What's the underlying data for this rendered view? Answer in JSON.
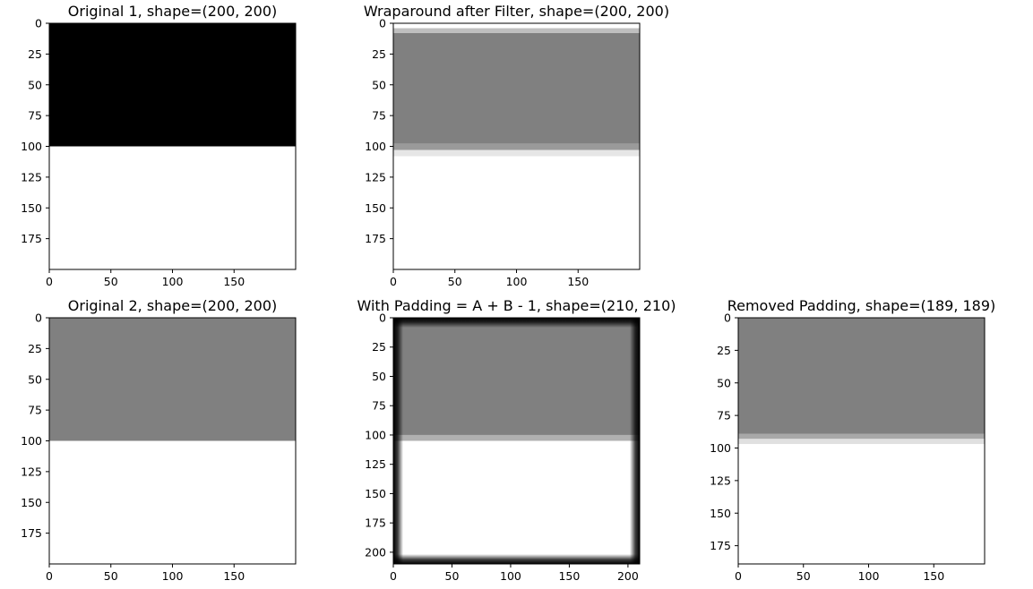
{
  "chart_data": [
    {
      "type": "image",
      "title": "Original 1, shape=(200, 200)",
      "shape": [
        200,
        200
      ],
      "xlim": [
        0,
        200
      ],
      "ylim": [
        0,
        200
      ],
      "xticks": [
        0,
        50,
        100,
        150
      ],
      "yticks": [
        0,
        25,
        50,
        75,
        100,
        125,
        150,
        175
      ],
      "colormap": "gray",
      "content": "rows 0-100 black, rows 100-200 white",
      "bands": [
        {
          "from": 0,
          "to": 100,
          "color": "#000000"
        },
        {
          "from": 100,
          "to": 200,
          "color": "#ffffff"
        }
      ],
      "edge_blur": false
    },
    {
      "type": "image",
      "title": "Wraparound after Filter, shape=(200, 200)",
      "shape": [
        200,
        200
      ],
      "xlim": [
        0,
        200
      ],
      "ylim": [
        0,
        200
      ],
      "xticks": [
        0,
        50,
        100,
        150
      ],
      "yticks": [
        0,
        25,
        50,
        75,
        100,
        125,
        150,
        175
      ],
      "colormap": "gray",
      "content": "gray band rows ~5-100 with blurred edges, white elsewhere",
      "bands": [
        {
          "from": 0,
          "to": 4,
          "color": "#ffffff"
        },
        {
          "from": 4,
          "to": 8,
          "color": "#bfbfbf"
        },
        {
          "from": 8,
          "to": 98,
          "color": "#808080"
        },
        {
          "from": 98,
          "to": 103,
          "color": "#9a9a9a"
        },
        {
          "from": 103,
          "to": 108,
          "color": "#e6e6e6"
        },
        {
          "from": 108,
          "to": 200,
          "color": "#ffffff"
        }
      ],
      "edge_blur": false
    },
    {
      "type": "image",
      "title": "Original 2, shape=(200, 200)",
      "shape": [
        200,
        200
      ],
      "xlim": [
        0,
        200
      ],
      "ylim": [
        0,
        200
      ],
      "xticks": [
        0,
        50,
        100,
        150
      ],
      "yticks": [
        0,
        25,
        50,
        75,
        100,
        125,
        150,
        175
      ],
      "colormap": "gray",
      "content": "rows 0-100 gray, rows 100-200 white",
      "bands": [
        {
          "from": 0,
          "to": 100,
          "color": "#808080"
        },
        {
          "from": 100,
          "to": 200,
          "color": "#ffffff"
        }
      ],
      "edge_blur": false
    },
    {
      "type": "image",
      "title": "With Padding = A + B - 1, shape=(210, 210)",
      "shape": [
        210,
        210
      ],
      "xlim": [
        0,
        210
      ],
      "ylim": [
        0,
        210
      ],
      "xticks": [
        0,
        50,
        100,
        150,
        200
      ],
      "yticks": [
        0,
        25,
        50,
        75,
        100,
        125,
        150,
        175,
        200
      ],
      "colormap": "gray",
      "content": "gray band rows ~8-100 and white rows ~105-200, black blurred border",
      "bands": [
        {
          "from": 0,
          "to": 100,
          "color": "#808080"
        },
        {
          "from": 100,
          "to": 105,
          "color": "#b0b0b0"
        },
        {
          "from": 105,
          "to": 210,
          "color": "#ffffff"
        }
      ],
      "edge_blur": true
    },
    {
      "type": "image",
      "title": "Removed Padding, shape=(189, 189)",
      "shape": [
        189,
        189
      ],
      "xlim": [
        0,
        189
      ],
      "ylim": [
        0,
        189
      ],
      "xticks": [
        0,
        50,
        100,
        150
      ],
      "yticks": [
        0,
        25,
        50,
        75,
        100,
        125,
        150,
        175
      ],
      "colormap": "gray",
      "content": "rows 0-90 gray, blurred edge, rows ~96-189 white",
      "bands": [
        {
          "from": 0,
          "to": 89,
          "color": "#808080"
        },
        {
          "from": 89,
          "to": 93,
          "color": "#a8a8a8"
        },
        {
          "from": 93,
          "to": 97,
          "color": "#e0e0e0"
        },
        {
          "from": 97,
          "to": 189,
          "color": "#ffffff"
        }
      ],
      "edge_blur": false
    }
  ]
}
